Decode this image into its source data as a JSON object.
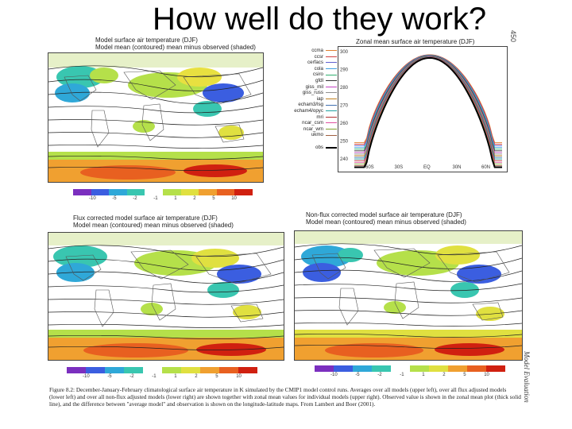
{
  "slide": {
    "title": "How well do they work?",
    "page_number": "450",
    "side_label": "Model Evaluation"
  },
  "panels": {
    "top_left": {
      "title": "Model surface air temperature (DJF)",
      "subtitle": "Model mean (contoured)  mean minus observed (shaded)"
    },
    "bottom_left": {
      "title": "Flux corrected model surface air temperature (DJF)",
      "subtitle": "Model mean (contoured)  mean minus observed (shaded)"
    },
    "bottom_right": {
      "title": "Non-flux corrected model surface air temperature (DJF)",
      "subtitle": "Model mean (contoured)  mean minus observed (shaded)"
    }
  },
  "colorbar": {
    "colors": [
      "#7b2fbf",
      "#3b5ee0",
      "#2fa8d8",
      "#39c6b0",
      "#ffffff",
      "#b5e04a",
      "#e0e040",
      "#f0a030",
      "#e86020",
      "#d02010"
    ],
    "ticks": [
      "-10",
      "-5",
      "-2",
      "-1",
      "1",
      "2",
      "5",
      "10"
    ]
  },
  "zonal": {
    "title": "Zonal mean surface air temperature (DJF)",
    "y_ticks": [
      "300",
      "290",
      "280",
      "270",
      "260",
      "250",
      "240"
    ],
    "x_ticks": [
      "60S",
      "30S",
      "EQ",
      "30N",
      "60N"
    ],
    "legend": [
      {
        "label": "ccma",
        "color": "#e08030"
      },
      {
        "label": "ccsr",
        "color": "#d04040"
      },
      {
        "label": "cerfacs",
        "color": "#6060d0"
      },
      {
        "label": "cola",
        "color": "#40a0e0"
      },
      {
        "label": "csiro",
        "color": "#30b070"
      },
      {
        "label": "gfdl",
        "color": "#303030"
      },
      {
        "label": "giss_mil",
        "color": "#c040c0"
      },
      {
        "label": "giss_russ",
        "color": "#909090"
      },
      {
        "label": "iap",
        "color": "#c08020"
      },
      {
        "label": "echam3/lsg",
        "color": "#4070b0"
      },
      {
        "label": "echam4/opyc",
        "color": "#20a0a0"
      },
      {
        "label": "mri",
        "color": "#b03030"
      },
      {
        "label": "ncar_csm",
        "color": "#e050a0"
      },
      {
        "label": "ncar_wm",
        "color": "#80a030"
      },
      {
        "label": "ukmo",
        "color": "#a06040"
      },
      {
        "label": "obs",
        "color": "#000000"
      }
    ]
  },
  "caption": "Figure 8.2: December-January-February climatological surface air temperature in K simulated by the CMIP1 model control runs. Averages over all models (upper left), over all flux adjusted models (lower left) and over all non-flux adjusted models (lower right) are shown together with zonal mean values for individual models (upper right). Observed value is shown in the zonal mean plot (thick solid line), and the difference between \"average model\" and observation is shown on the longitude-latitude maps. From Lambert and Boer (2001)."
}
